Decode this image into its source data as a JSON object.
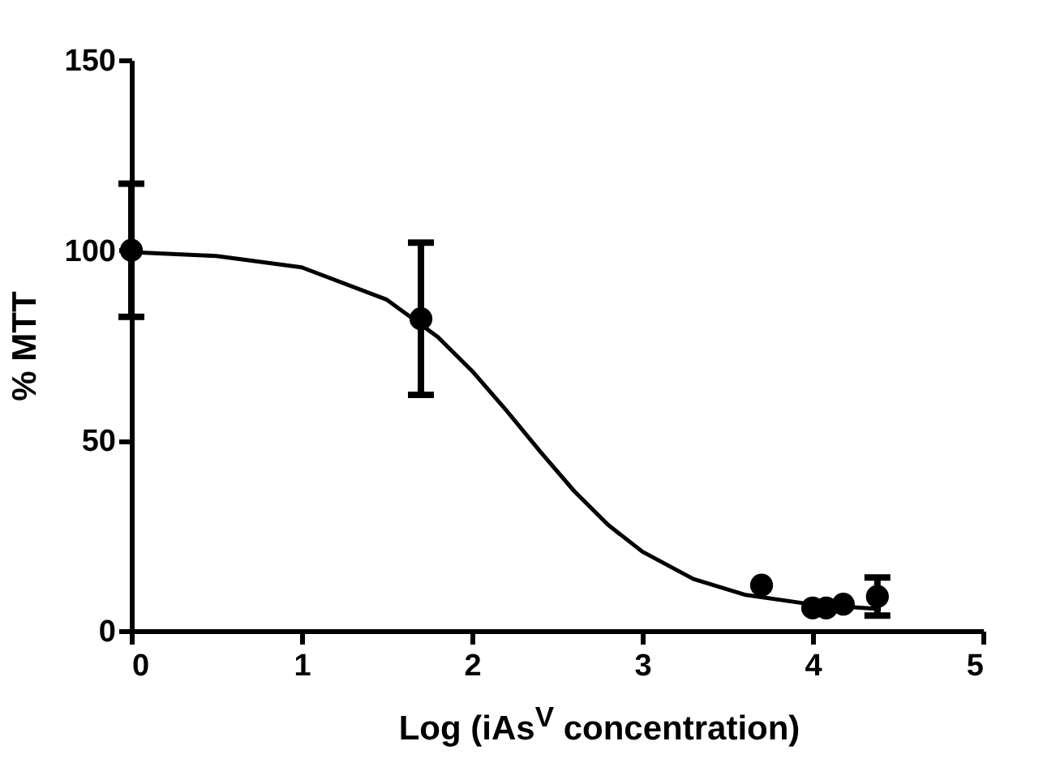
{
  "chart_data": {
    "type": "scatter",
    "xlabel": "Log (iAs$^{V}$ concentration)",
    "ylabel": "% MTT",
    "xlim": [
      0,
      5
    ],
    "xticks": [
      0,
      1,
      2,
      3,
      4,
      5
    ],
    "ylim": [
      0,
      150
    ],
    "yticks": [
      0,
      50,
      100,
      150
    ],
    "grid": false,
    "series": [
      {
        "marker": "circle",
        "color": "#000000",
        "x": [
          0,
          1.7,
          3.7,
          4.0,
          4.08,
          4.18,
          4.38
        ],
        "values": [
          100,
          82,
          12,
          6,
          6,
          7,
          9
        ],
        "errors": [
          17.5,
          20,
          null,
          null,
          null,
          null,
          5
        ]
      },
      {
        "type": "line",
        "color": "#000000",
        "line_style": "solid",
        "x": [
          0,
          0.5,
          1.0,
          1.5,
          1.8,
          2.0,
          2.2,
          2.4,
          2.6,
          2.8,
          3.0,
          3.3,
          3.6,
          4.0,
          4.4
        ],
        "values": [
          99.5,
          98.5,
          95.5,
          87,
          77.2,
          68.3,
          58,
          47.1,
          36.7,
          27.8,
          20.8,
          13.6,
          9.5,
          6.9,
          5.7
        ]
      }
    ]
  }
}
